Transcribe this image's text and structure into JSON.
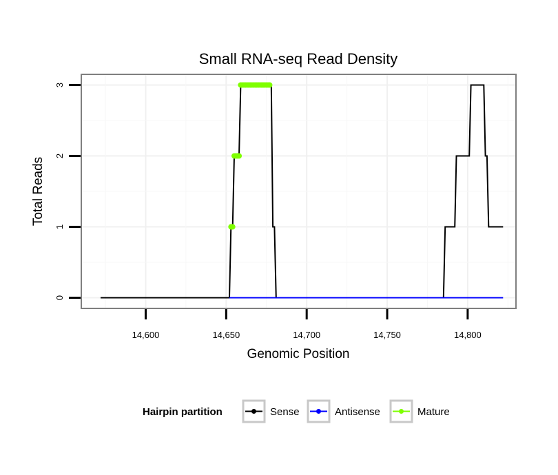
{
  "chart_data": {
    "type": "line",
    "title": "Small RNA-seq Read Density",
    "xlabel": "Genomic Position",
    "ylabel": "Total Reads",
    "xlim": [
      14560,
      14830
    ],
    "ylim": [
      -0.15,
      3.15
    ],
    "xticks": [
      {
        "value": 14600,
        "label": "14,600"
      },
      {
        "value": 14650,
        "label": "14,650"
      },
      {
        "value": 14700,
        "label": "14,700"
      },
      {
        "value": 14750,
        "label": "14,750"
      },
      {
        "value": 14800,
        "label": "14,800"
      }
    ],
    "yticks": [
      {
        "value": 0,
        "label": "0"
      },
      {
        "value": 1,
        "label": "1"
      },
      {
        "value": 2,
        "label": "2"
      },
      {
        "value": 3,
        "label": "3"
      }
    ],
    "grid": true,
    "legend": {
      "title": "Hairpin partition",
      "position": "bottom",
      "entries": [
        {
          "name": "Sense",
          "color": "#000000"
        },
        {
          "name": "Antisense",
          "color": "#0000ff"
        },
        {
          "name": "Mature",
          "color": "#7fff00"
        }
      ]
    },
    "series": [
      {
        "name": "Sense",
        "color": "#000000",
        "x": [
          14572,
          14652,
          14653,
          14654,
          14655,
          14658,
          14659,
          14660,
          14677,
          14678,
          14679,
          14680,
          14681,
          14682,
          14785,
          14786,
          14792,
          14793,
          14801,
          14802,
          14810,
          14811,
          14812,
          14813,
          14822
        ],
        "y": [
          0,
          0,
          1,
          1,
          2,
          2,
          3,
          3,
          3,
          3,
          1,
          1,
          0,
          0,
          0,
          1,
          1,
          2,
          2,
          3,
          3,
          2,
          2,
          1,
          1
        ]
      },
      {
        "name": "Antisense",
        "color": "#0000ff",
        "x": [
          14652,
          14822
        ],
        "y": [
          0,
          0
        ]
      },
      {
        "name": "Mature",
        "color": "#7fff00",
        "x": [
          14653,
          14654,
          14655,
          14656,
          14657,
          14658,
          14659,
          14660,
          14661,
          14662,
          14663,
          14664,
          14665,
          14666,
          14667,
          14668,
          14669,
          14670,
          14671,
          14672,
          14673,
          14674,
          14675,
          14676,
          14677
        ],
        "y": [
          1,
          1,
          2,
          2,
          2,
          2,
          3,
          3,
          3,
          3,
          3,
          3,
          3,
          3,
          3,
          3,
          3,
          3,
          3,
          3,
          3,
          3,
          3,
          3,
          3
        ]
      }
    ]
  }
}
